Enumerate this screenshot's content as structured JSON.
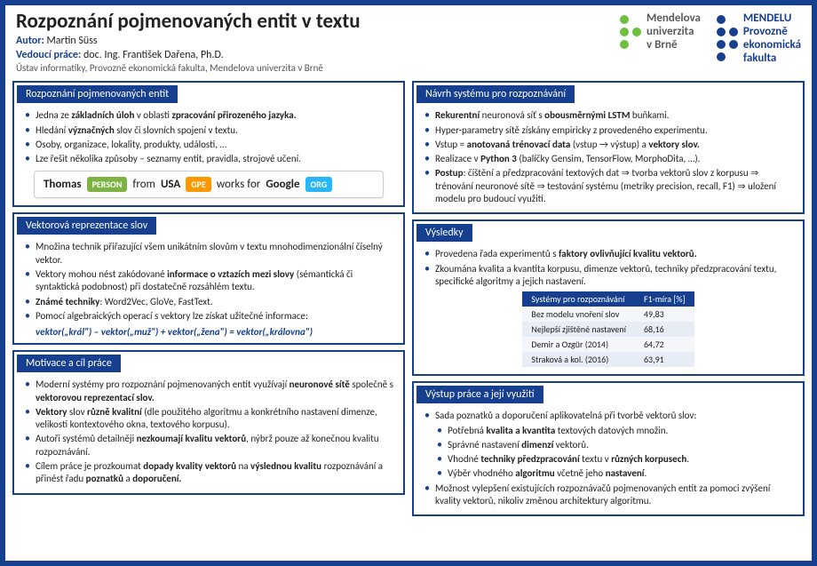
{
  "header": {
    "title": "Rozpoznání pojmenovaných entit v textu",
    "author_label": "Autor:",
    "author": "Martin Süss",
    "supervisor_label": "Vedoucí práce:",
    "supervisor": "doc. Ing. František Dařena, Ph.D.",
    "department": "Ústav informatiky, Provozně ekonomická fakulta, Mendelova univerzita v Brně"
  },
  "logo1": {
    "line1": "Mendelova",
    "line2": "univerzita",
    "line3": "v Brně",
    "dot_color": "#6cbf3f",
    "text_color": "#5a5a5a"
  },
  "logo2": {
    "line1": "MENDELU",
    "line2": "Provozně",
    "line3": "ekonomická",
    "line4": "fakulta",
    "dot_color": "#163f8f",
    "text_color": "#163f8f"
  },
  "s1": {
    "title": "Rozpoznání pojmenovaných entit",
    "b1a": "Jedna ze ",
    "b1b": "základních úloh",
    "b1c": " v oblasti ",
    "b1d": "zpracování přirozeného jazyka.",
    "b2a": "Hledání ",
    "b2b": "význačných",
    "b2c": " slov či slovních spojení v textu.",
    "b3": "Osoby, organizace, lokality, produkty, události, …",
    "b4": "Lze řešit několika způsoby – seznamy entit, pravidla, strojové učení."
  },
  "example": {
    "w1": "Thomas",
    "t1": "PERSON",
    "c1": "#7cb342",
    "w2": "from",
    "w3": "USA",
    "t3": "GPE",
    "c3": "#ff9800",
    "w4": "works for",
    "w5": "Google",
    "t5": "ORG",
    "c5": "#29b6f6"
  },
  "s2": {
    "title": "Vektorová reprezentace slov",
    "b1": "Množina technik přiřazující všem unikátním slovům v textu mnohodimenzionální číselný vektor.",
    "b2a": "Vektory mohou nést zakódované ",
    "b2b": "informace o vztazích mezi slovy",
    "b2c": " (sémantická či syntaktická podobnost) při dostatečně rozsáhlém textu.",
    "b3a": "Známé techniky",
    "b3b": ": Word2Vec, GloVe, FastText.",
    "b4": "Pomocí algebraických operací s vektory lze získat užitečné informace:",
    "vec": "vektor(„král\") – vektor(„muž\") + vektor(„žena\") = vektor(„královna\")"
  },
  "s3": {
    "title": "Motivace a cíl práce",
    "b1a": "Moderní systémy pro rozpoznání pojmenovaných entit využívají ",
    "b1b": "neuronové sítě",
    "b1c": " společně s ",
    "b1d": "vektorovou reprezentací slov.",
    "b2a": "Vektory",
    "b2b": " slov ",
    "b2c": "různě kvalitní",
    "b2d": " (dle použitého algoritmu a konkrétního nastavení dimenze, velikosti kontextového okna, textového korpusu).",
    "b3a": "Autoři systémů detailněji ",
    "b3b": "nezkoumají kvalitu vektorů",
    "b3c": ", nýbrž pouze až konečnou kvalitu rozpoznávání.",
    "b4a": "Cílem práce je prozkoumat ",
    "b4b": "dopady kvality vektorů",
    "b4c": " na ",
    "b4d": "výslednou kvalitu",
    "b4e": " rozpoznávání a přinést řadu ",
    "b4f": "poznatků",
    "b4g": " a ",
    "b4h": "doporučení."
  },
  "s4": {
    "title": "Návrh systému pro rozpoznávání",
    "b1a": "Rekurentní",
    "b1b": " neuronová síť s ",
    "b1c": "obousměrnými LSTM",
    "b1d": " buňkami.",
    "b2": "Hyper-parametry sítě získány empiricky z provedeného experimentu.",
    "b3a": "Vstup = ",
    "b3b": "anotovaná trénovací data",
    "b3c": " (vstup → výstup) a ",
    "b3d": "vektory slov.",
    "b4a": "Realizace v ",
    "b4b": "Python 3",
    "b4c": " (balíčky Gensim, TensorFlow, MorphoDita, …).",
    "b5a": "Postup",
    "b5b": ": čištění a předzpracování textových dat ⇒ tvorba vektorů slov z korpusu ⇒ trénování neuronové sítě ⇒ testování systému (metriky precision, recall, F1) ⇒ uložení modelu pro budoucí využití."
  },
  "s5": {
    "title": "Výsledky",
    "b1a": "Provedena řada experimentů s ",
    "b1b": "faktory ovlivňující kvalitu vektorů.",
    "b2": "Zkoumána kvalita a kvantita korpusu, dimenze vektorů, techniky předzpracování textu, specifické algoritmy a jejich nastavení.",
    "th1": "Systémy pro rozpoznávání",
    "th2": "F1-míra [%]",
    "r1a": "Bez modelu vnoření slov",
    "r1b": "49,83",
    "r2a": "Nejlepší zjištěné nastavení",
    "r2b": "68,16",
    "r3a": "Demir a Ozgür (2014)",
    "r3b": "64,72",
    "r4a": "Straková a kol. (2016)",
    "r4b": "63,91"
  },
  "s6": {
    "title": "Výstup práce a její využití",
    "b1": "Sada poznatků a doporučení aplikovatelná při tvorbě vektorů slov:",
    "b1_1a": "Potřebná ",
    "b1_1b": "kvalita a kvantita",
    "b1_1c": " textových datových množin.",
    "b1_2a": "Správné nastavení ",
    "b1_2b": "dimenzí",
    "b1_2c": " vektorů.",
    "b1_3a": "Vhodné ",
    "b1_3b": "techniky předzpracování",
    "b1_3c": " textu v ",
    "b1_3d": "různých korpusech",
    "b1_3e": ".",
    "b1_4a": "Výběr vhodného ",
    "b1_4b": "algoritmu",
    "b1_4c": " včetně jeho ",
    "b1_4d": "nastavení",
    "b1_4e": ".",
    "b2": "Možnost vylepšení existujících rozpoznávačů pojmenovaných entit za pomoci zvýšení kvality vektorů, nikoliv změnou architektury algoritmu."
  }
}
